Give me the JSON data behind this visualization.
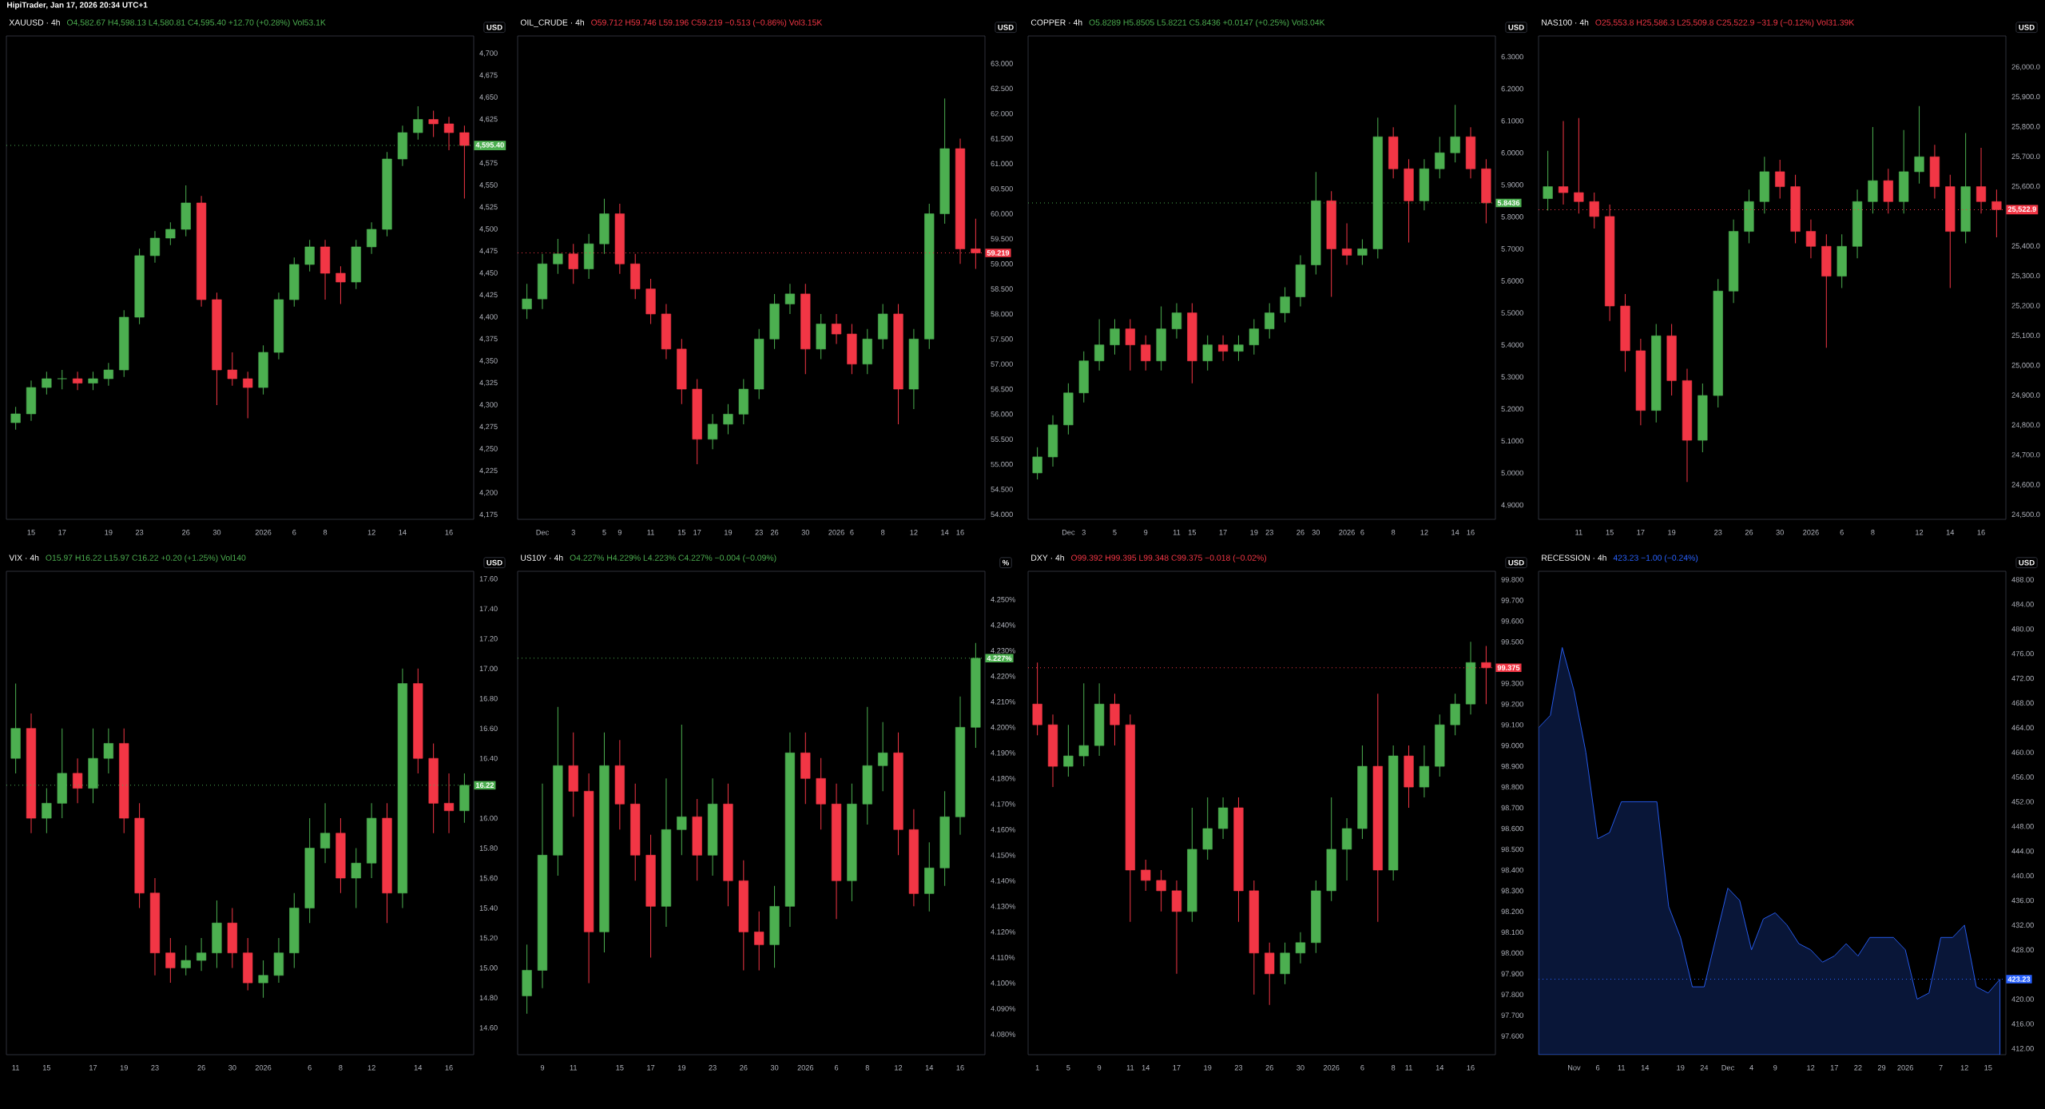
{
  "chart_data": [
    {
      "type": "candlestick",
      "title": "XAUUSD · 4h",
      "subtitle": "O4,582.67 H4,598.13 L4,580.81 C4,595.40 +12.70 (+0.28%) Vol53.1K",
      "ylabel": "USD",
      "annotations": [
        "HipiTrader, Jan 17, 2026 20:34 UTC+1"
      ],
      "categories": [
        null,
        "15",
        null,
        "17",
        null,
        null,
        "19",
        null,
        "23",
        null,
        null,
        "26",
        null,
        "30",
        null,
        null,
        "2026",
        null,
        "6",
        null,
        "8",
        null,
        null,
        "12",
        null,
        "14",
        null,
        null,
        "16",
        null
      ],
      "ohlc": [
        [
          4280,
          4298,
          4272,
          4290
        ],
        [
          4290,
          4328,
          4282,
          4320
        ],
        [
          4320,
          4338,
          4312,
          4330
        ],
        [
          4330,
          4340,
          4318,
          4330
        ],
        [
          4330,
          4338,
          4317,
          4325
        ],
        [
          4325,
          4338,
          4317,
          4330
        ],
        [
          4330,
          4348,
          4322,
          4340
        ],
        [
          4340,
          4408,
          4332,
          4400
        ],
        [
          4400,
          4478,
          4392,
          4470
        ],
        [
          4470,
          4498,
          4462,
          4490
        ],
        [
          4490,
          4508,
          4482,
          4500
        ],
        [
          4500,
          4550,
          4492,
          4530
        ],
        [
          4530,
          4538,
          4412,
          4420
        ],
        [
          4420,
          4428,
          4300,
          4340
        ],
        [
          4340,
          4360,
          4322,
          4330
        ],
        [
          4330,
          4338,
          4285,
          4320
        ],
        [
          4320,
          4368,
          4312,
          4360
        ],
        [
          4360,
          4428,
          4352,
          4420
        ],
        [
          4420,
          4468,
          4412,
          4460
        ],
        [
          4460,
          4488,
          4452,
          4480
        ],
        [
          4480,
          4488,
          4420,
          4450
        ],
        [
          4450,
          4458,
          4415,
          4440
        ],
        [
          4440,
          4488,
          4432,
          4480
        ],
        [
          4480,
          4508,
          4472,
          4500
        ],
        [
          4500,
          4588,
          4492,
          4580
        ],
        [
          4580,
          4618,
          4572,
          4610
        ],
        [
          4610,
          4640,
          4602,
          4625
        ],
        [
          4625,
          4635,
          4605,
          4620
        ],
        [
          4620,
          4628,
          4590,
          4610
        ],
        [
          4610,
          4618,
          4535,
          4595.4
        ]
      ],
      "ylim": [
        4170,
        4720
      ],
      "yticks": [
        {
          "value": 4175,
          "label": "4,175"
        },
        {
          "value": 4200,
          "label": "4,200"
        },
        {
          "value": 4225,
          "label": "4,225"
        },
        {
          "value": 4250,
          "label": "4,250"
        },
        {
          "value": 4275,
          "label": "4,275"
        },
        {
          "value": 4300,
          "label": "4,300"
        },
        {
          "value": 4325,
          "label": "4,325"
        },
        {
          "value": 4350,
          "label": "4,350"
        },
        {
          "value": 4375,
          "label": "4,375"
        },
        {
          "value": 4400,
          "label": "4,400"
        },
        {
          "value": 4425,
          "label": "4,425"
        },
        {
          "value": 4450,
          "label": "4,450"
        },
        {
          "value": 4475,
          "label": "4,475"
        },
        {
          "value": 4500,
          "label": "4,500"
        },
        {
          "value": 4525,
          "label": "4,525"
        },
        {
          "value": 4550,
          "label": "4,550"
        },
        {
          "value": 4575,
          "label": "4,575"
        },
        {
          "value": 4625,
          "label": "4,625"
        },
        {
          "value": 4650,
          "label": "4,650"
        },
        {
          "value": 4675,
          "label": "4,675"
        },
        {
          "value": 4700,
          "label": "4,700"
        }
      ],
      "ref_lines": [
        {
          "axis": "y",
          "value": 4595.4,
          "label": "4,595.40",
          "color": "#4caf50",
          "line_style": "dotted"
        }
      ]
    },
    {
      "type": "candlestick",
      "title": "OIL_CRUDE · 4h",
      "subtitle": "O59.712 H59.746 L59.196 C59.219 −0.513 (−0.86%) Vol3.15K",
      "ylabel": "USD",
      "categories": [
        null,
        "Dec",
        null,
        "3",
        null,
        "5",
        "9",
        null,
        "11",
        null,
        "15",
        "17",
        null,
        "19",
        null,
        "23",
        "26",
        null,
        "30",
        null,
        "2026",
        "6",
        null,
        "8",
        null,
        "12",
        null,
        "14",
        "16",
        null
      ],
      "ohlc": [
        [
          58.1,
          58.6,
          57.9,
          58.3
        ],
        [
          58.3,
          59.2,
          58.1,
          59.0
        ],
        [
          59.0,
          59.5,
          58.8,
          59.2
        ],
        [
          59.2,
          59.4,
          58.6,
          58.9
        ],
        [
          58.9,
          59.6,
          58.7,
          59.4
        ],
        [
          59.4,
          60.3,
          59.2,
          60.0
        ],
        [
          60.0,
          60.2,
          58.8,
          59.0
        ],
        [
          59.0,
          59.2,
          58.3,
          58.5
        ],
        [
          58.5,
          58.7,
          57.8,
          58.0
        ],
        [
          58.0,
          58.2,
          57.1,
          57.3
        ],
        [
          57.3,
          57.5,
          56.2,
          56.5
        ],
        [
          56.5,
          56.7,
          55.0,
          55.5
        ],
        [
          55.5,
          56.0,
          55.3,
          55.8
        ],
        [
          55.8,
          56.2,
          55.6,
          56.0
        ],
        [
          56.0,
          56.7,
          55.8,
          56.5
        ],
        [
          56.5,
          57.7,
          56.3,
          57.5
        ],
        [
          57.5,
          58.4,
          57.3,
          58.2
        ],
        [
          58.2,
          58.6,
          58.0,
          58.4
        ],
        [
          58.4,
          58.6,
          56.8,
          57.3
        ],
        [
          57.3,
          58.0,
          57.1,
          57.8
        ],
        [
          57.8,
          58.0,
          57.4,
          57.6
        ],
        [
          57.6,
          57.8,
          56.8,
          57.0
        ],
        [
          57.0,
          57.7,
          56.8,
          57.5
        ],
        [
          57.5,
          58.2,
          57.3,
          58.0
        ],
        [
          58.0,
          58.2,
          55.8,
          56.5
        ],
        [
          56.5,
          57.7,
          56.1,
          57.5
        ],
        [
          57.5,
          60.2,
          57.3,
          60.0
        ],
        [
          60.0,
          62.3,
          59.8,
          61.3
        ],
        [
          61.3,
          61.5,
          59.0,
          59.3
        ],
        [
          59.3,
          59.9,
          58.9,
          59.219
        ]
      ],
      "ylim": [
        53.9,
        63.55
      ],
      "yticks": [
        {
          "value": 54,
          "label": "54.000"
        },
        {
          "value": 54.5,
          "label": "54.500"
        },
        {
          "value": 55,
          "label": "55.000"
        },
        {
          "value": 55.5,
          "label": "55.500"
        },
        {
          "value": 56,
          "label": "56.000"
        },
        {
          "value": 56.5,
          "label": "56.500"
        },
        {
          "value": 57,
          "label": "57.000"
        },
        {
          "value": 57.5,
          "label": "57.500"
        },
        {
          "value": 58,
          "label": "58.000"
        },
        {
          "value": 58.5,
          "label": "58.500"
        },
        {
          "value": 59,
          "label": "59.000"
        },
        {
          "value": 59.5,
          "label": "59.500"
        },
        {
          "value": 60,
          "label": "60.000"
        },
        {
          "value": 60.5,
          "label": "60.500"
        },
        {
          "value": 61,
          "label": "61.000"
        },
        {
          "value": 61.5,
          "label": "61.500"
        },
        {
          "value": 62,
          "label": "62.000"
        },
        {
          "value": 62.5,
          "label": "62.500"
        },
        {
          "value": 63,
          "label": "63.000"
        }
      ],
      "ref_lines": [
        {
          "axis": "y",
          "value": 59.219,
          "label": "59.219",
          "color": "#f23645",
          "line_style": "dotted"
        }
      ]
    },
    {
      "type": "candlestick",
      "title": "COPPER · 4h",
      "subtitle": "O5.8289 H5.8505 L5.8221 C5.8436 +0.0147 (+0.25%) Vol3.04K",
      "ylabel": "USD",
      "categories": [
        null,
        null,
        "Dec",
        "3",
        null,
        "5",
        null,
        "9",
        null,
        "11",
        "15",
        null,
        "17",
        null,
        "19",
        "23",
        null,
        "26",
        "30",
        null,
        "2026",
        "6",
        null,
        "8",
        null,
        "12",
        null,
        "14",
        "16",
        null
      ],
      "ohlc": [
        [
          5.0,
          5.08,
          4.98,
          5.05
        ],
        [
          5.05,
          5.18,
          5.02,
          5.15
        ],
        [
          5.15,
          5.28,
          5.12,
          5.25
        ],
        [
          5.25,
          5.38,
          5.22,
          5.35
        ],
        [
          5.35,
          5.48,
          5.32,
          5.4
        ],
        [
          5.4,
          5.48,
          5.37,
          5.45
        ],
        [
          5.45,
          5.48,
          5.32,
          5.4
        ],
        [
          5.4,
          5.43,
          5.32,
          5.35
        ],
        [
          5.35,
          5.52,
          5.32,
          5.45
        ],
        [
          5.45,
          5.53,
          5.42,
          5.5
        ],
        [
          5.5,
          5.53,
          5.28,
          5.35
        ],
        [
          5.35,
          5.43,
          5.32,
          5.4
        ],
        [
          5.4,
          5.43,
          5.35,
          5.38
        ],
        [
          5.38,
          5.43,
          5.35,
          5.4
        ],
        [
          5.4,
          5.48,
          5.37,
          5.45
        ],
        [
          5.45,
          5.53,
          5.42,
          5.5
        ],
        [
          5.5,
          5.58,
          5.47,
          5.55
        ],
        [
          5.55,
          5.68,
          5.52,
          5.65
        ],
        [
          5.65,
          5.94,
          5.62,
          5.85
        ],
        [
          5.85,
          5.88,
          5.55,
          5.7
        ],
        [
          5.7,
          5.78,
          5.65,
          5.68
        ],
        [
          5.68,
          5.73,
          5.65,
          5.7
        ],
        [
          5.7,
          6.11,
          5.67,
          6.05
        ],
        [
          6.05,
          6.08,
          5.92,
          5.95
        ],
        [
          5.95,
          5.98,
          5.72,
          5.85
        ],
        [
          5.85,
          5.98,
          5.82,
          5.95
        ],
        [
          5.95,
          6.05,
          5.92,
          6.0
        ],
        [
          6.0,
          6.15,
          5.97,
          6.05
        ],
        [
          6.05,
          6.08,
          5.92,
          5.95
        ],
        [
          5.95,
          5.98,
          5.78,
          5.8436
        ]
      ],
      "ylim": [
        4.855,
        6.365
      ],
      "yticks": [
        {
          "value": 4.9,
          "label": "4.9000"
        },
        {
          "value": 5.0,
          "label": "5.0000"
        },
        {
          "value": 5.1,
          "label": "5.1000"
        },
        {
          "value": 5.2,
          "label": "5.2000"
        },
        {
          "value": 5.3,
          "label": "5.3000"
        },
        {
          "value": 5.4,
          "label": "5.4000"
        },
        {
          "value": 5.5,
          "label": "5.5000"
        },
        {
          "value": 5.6,
          "label": "5.6000"
        },
        {
          "value": 5.7,
          "label": "5.7000"
        },
        {
          "value": 5.8,
          "label": "5.8000"
        },
        {
          "value": 5.9,
          "label": "5.9000"
        },
        {
          "value": 6.0,
          "label": "6.0000"
        },
        {
          "value": 6.1,
          "label": "6.1000"
        },
        {
          "value": 6.2,
          "label": "6.2000"
        },
        {
          "value": 6.3,
          "label": "6.3000"
        }
      ],
      "ref_lines": [
        {
          "axis": "y",
          "value": 5.8436,
          "label": "5.8436",
          "color": "#4caf50",
          "line_style": "dotted"
        }
      ]
    },
    {
      "type": "candlestick",
      "title": "NAS100 · 4h",
      "subtitle": "O25,553.8 H25,586.3 L25,509.8 C25,522.9 −31.9 (−0.12%) Vol31.39K",
      "ylabel": "USD",
      "categories": [
        null,
        null,
        "11",
        null,
        "15",
        null,
        "17",
        null,
        "19",
        null,
        null,
        "23",
        null,
        "26",
        null,
        "30",
        null,
        "2026",
        null,
        "6",
        null,
        "8",
        null,
        null,
        "12",
        null,
        "14",
        null,
        "16",
        null
      ],
      "ohlc": [
        [
          25560,
          25720,
          25520,
          25600
        ],
        [
          25600,
          25820,
          25540,
          25580
        ],
        [
          25580,
          25830,
          25510,
          25550
        ],
        [
          25550,
          25580,
          25460,
          25500
        ],
        [
          25500,
          25540,
          25150,
          25200
        ],
        [
          25200,
          25240,
          24980,
          25050
        ],
        [
          25050,
          25090,
          24800,
          24850
        ],
        [
          24850,
          25140,
          24810,
          25100
        ],
        [
          25100,
          25140,
          24900,
          24950
        ],
        [
          24950,
          24990,
          24610,
          24750
        ],
        [
          24750,
          24940,
          24710,
          24900
        ],
        [
          24900,
          25290,
          24860,
          25250
        ],
        [
          25250,
          25490,
          25210,
          25450
        ],
        [
          25450,
          25590,
          25410,
          25550
        ],
        [
          25550,
          25700,
          25510,
          25650
        ],
        [
          25650,
          25690,
          25560,
          25600
        ],
        [
          25600,
          25640,
          25410,
          25450
        ],
        [
          25450,
          25490,
          25360,
          25400
        ],
        [
          25400,
          25440,
          25060,
          25300
        ],
        [
          25300,
          25440,
          25260,
          25400
        ],
        [
          25400,
          25590,
          25360,
          25550
        ],
        [
          25550,
          25800,
          25510,
          25620
        ],
        [
          25620,
          25660,
          25510,
          25550
        ],
        [
          25550,
          25790,
          25510,
          25650
        ],
        [
          25650,
          25870,
          25610,
          25700
        ],
        [
          25700,
          25740,
          25560,
          25600
        ],
        [
          25600,
          25640,
          25260,
          25450
        ],
        [
          25450,
          25780,
          25410,
          25600
        ],
        [
          25600,
          25730,
          25510,
          25550
        ],
        [
          25550,
          25590,
          25430,
          25522.9
        ]
      ],
      "ylim": [
        24485,
        26105
      ],
      "yticks": [
        {
          "value": 24500,
          "label": "24,500.0"
        },
        {
          "value": 24600,
          "label": "24,600.0"
        },
        {
          "value": 24700,
          "label": "24,700.0"
        },
        {
          "value": 24800,
          "label": "24,800.0"
        },
        {
          "value": 24900,
          "label": "24,900.0"
        },
        {
          "value": 25000,
          "label": "25,000.0"
        },
        {
          "value": 25100,
          "label": "25,100.0"
        },
        {
          "value": 25200,
          "label": "25,200.0"
        },
        {
          "value": 25300,
          "label": "25,300.0"
        },
        {
          "value": 25400,
          "label": "25,400.0"
        },
        {
          "value": 25600,
          "label": "25,600.0"
        },
        {
          "value": 25700,
          "label": "25,700.0"
        },
        {
          "value": 25800,
          "label": "25,800.0"
        },
        {
          "value": 25900,
          "label": "25,900.0"
        },
        {
          "value": 26000,
          "label": "26,000.0"
        }
      ],
      "ref_lines": [
        {
          "axis": "y",
          "value": 25522.9,
          "label": "25,522.9",
          "color": "#f23645",
          "line_style": "dotted"
        }
      ]
    },
    {
      "type": "candlestick",
      "title": "VIX · 4h",
      "subtitle": "O15.97 H16.22 L15.97 C16.22 +0.20 (+1.25%) Vol140",
      "ylabel": "USD",
      "categories": [
        "11",
        null,
        "15",
        null,
        null,
        "17",
        null,
        "19",
        null,
        "23",
        null,
        null,
        "26",
        null,
        "30",
        null,
        "2026",
        null,
        null,
        "6",
        null,
        "8",
        null,
        "12",
        null,
        null,
        "14",
        null,
        "16",
        null
      ],
      "ohlc": [
        [
          16.4,
          16.9,
          16.3,
          16.6
        ],
        [
          16.6,
          16.7,
          15.9,
          16.0
        ],
        [
          16.0,
          16.2,
          15.9,
          16.1
        ],
        [
          16.1,
          16.6,
          16.0,
          16.3
        ],
        [
          16.3,
          16.4,
          16.1,
          16.2
        ],
        [
          16.2,
          16.6,
          16.1,
          16.4
        ],
        [
          16.4,
          16.6,
          16.3,
          16.5
        ],
        [
          16.5,
          16.6,
          15.9,
          16.0
        ],
        [
          16.0,
          16.1,
          15.4,
          15.5
        ],
        [
          15.5,
          15.6,
          14.95,
          15.1
        ],
        [
          15.1,
          15.2,
          14.9,
          15.0
        ],
        [
          15.0,
          15.15,
          14.95,
          15.05
        ],
        [
          15.05,
          15.2,
          14.98,
          15.1
        ],
        [
          15.1,
          15.45,
          15.0,
          15.3
        ],
        [
          15.3,
          15.4,
          15.0,
          15.1
        ],
        [
          15.1,
          15.2,
          14.85,
          14.9
        ],
        [
          14.9,
          15.05,
          14.8,
          14.95
        ],
        [
          14.95,
          15.2,
          14.9,
          15.1
        ],
        [
          15.1,
          15.5,
          15.0,
          15.4
        ],
        [
          15.4,
          16.0,
          15.3,
          15.8
        ],
        [
          15.8,
          16.1,
          15.7,
          15.9
        ],
        [
          15.9,
          16.0,
          15.5,
          15.6
        ],
        [
          15.6,
          15.8,
          15.4,
          15.7
        ],
        [
          15.7,
          16.1,
          15.6,
          16.0
        ],
        [
          16.0,
          16.1,
          15.3,
          15.5
        ],
        [
          15.5,
          17.0,
          15.4,
          16.9
        ],
        [
          16.9,
          17.0,
          16.3,
          16.4
        ],
        [
          16.4,
          16.5,
          15.9,
          16.1
        ],
        [
          16.1,
          16.3,
          15.9,
          16.05
        ],
        [
          16.05,
          16.3,
          15.97,
          16.22
        ]
      ],
      "ylim": [
        14.42,
        17.65
      ],
      "yticks": [
        {
          "value": 14.6,
          "label": "14.60"
        },
        {
          "value": 14.8,
          "label": "14.80"
        },
        {
          "value": 15.0,
          "label": "15.00"
        },
        {
          "value": 15.2,
          "label": "15.20"
        },
        {
          "value": 15.4,
          "label": "15.40"
        },
        {
          "value": 15.6,
          "label": "15.60"
        },
        {
          "value": 15.8,
          "label": "15.80"
        },
        {
          "value": 16.0,
          "label": "16.00"
        },
        {
          "value": 16.4,
          "label": "16.40"
        },
        {
          "value": 16.6,
          "label": "16.60"
        },
        {
          "value": 16.8,
          "label": "16.80"
        },
        {
          "value": 17.0,
          "label": "17.00"
        },
        {
          "value": 17.2,
          "label": "17.20"
        },
        {
          "value": 17.4,
          "label": "17.40"
        },
        {
          "value": 17.6,
          "label": "17.60"
        }
      ],
      "ref_lines": [
        {
          "axis": "y",
          "value": 16.22,
          "label": "16.22",
          "color": "#4caf50",
          "line_style": "dotted"
        }
      ]
    },
    {
      "type": "candlestick",
      "title": "US10Y · 4h",
      "subtitle": "O4.227% H4.229% L4.223% C4.227% −0.004 (−0.09%)",
      "ylabel": "%",
      "categories": [
        null,
        "9",
        null,
        "11",
        null,
        null,
        "15",
        null,
        "17",
        null,
        "19",
        null,
        "23",
        null,
        "26",
        null,
        "30",
        null,
        "2026",
        null,
        "6",
        null,
        "8",
        null,
        "12",
        null,
        "14",
        null,
        "16",
        null
      ],
      "ohlc": [
        [
          4.095,
          4.115,
          4.088,
          4.105
        ],
        [
          4.105,
          4.178,
          4.098,
          4.15
        ],
        [
          4.15,
          4.208,
          4.142,
          4.185
        ],
        [
          4.185,
          4.198,
          4.165,
          4.175
        ],
        [
          4.175,
          4.182,
          4.1,
          4.12
        ],
        [
          4.12,
          4.198,
          4.112,
          4.185
        ],
        [
          4.185,
          4.195,
          4.16,
          4.17
        ],
        [
          4.17,
          4.178,
          4.14,
          4.15
        ],
        [
          4.15,
          4.158,
          4.11,
          4.13
        ],
        [
          4.13,
          4.18,
          4.122,
          4.16
        ],
        [
          4.16,
          4.201,
          4.15,
          4.165
        ],
        [
          4.165,
          4.172,
          4.14,
          4.15
        ],
        [
          4.15,
          4.18,
          4.142,
          4.17
        ],
        [
          4.17,
          4.178,
          4.13,
          4.14
        ],
        [
          4.14,
          4.148,
          4.105,
          4.12
        ],
        [
          4.12,
          4.128,
          4.105,
          4.115
        ],
        [
          4.115,
          4.138,
          4.106,
          4.13
        ],
        [
          4.13,
          4.198,
          4.122,
          4.19
        ],
        [
          4.19,
          4.198,
          4.17,
          4.18
        ],
        [
          4.18,
          4.188,
          4.16,
          4.17
        ],
        [
          4.17,
          4.178,
          4.125,
          4.14
        ],
        [
          4.14,
          4.178,
          4.132,
          4.17
        ],
        [
          4.17,
          4.208,
          4.162,
          4.185
        ],
        [
          4.185,
          4.202,
          4.175,
          4.19
        ],
        [
          4.19,
          4.198,
          4.15,
          4.16
        ],
        [
          4.16,
          4.168,
          4.13,
          4.135
        ],
        [
          4.135,
          4.155,
          4.128,
          4.145
        ],
        [
          4.145,
          4.175,
          4.138,
          4.165
        ],
        [
          4.165,
          4.212,
          4.158,
          4.2
        ],
        [
          4.2,
          4.233,
          4.192,
          4.227
        ]
      ],
      "ylim": [
        4.072,
        4.261
      ],
      "yticks": [
        {
          "value": 4.08,
          "label": "4.080%"
        },
        {
          "value": 4.09,
          "label": "4.090%"
        },
        {
          "value": 4.1,
          "label": "4.100%"
        },
        {
          "value": 4.11,
          "label": "4.110%"
        },
        {
          "value": 4.12,
          "label": "4.120%"
        },
        {
          "value": 4.13,
          "label": "4.130%"
        },
        {
          "value": 4.14,
          "label": "4.140%"
        },
        {
          "value": 4.15,
          "label": "4.150%"
        },
        {
          "value": 4.16,
          "label": "4.160%"
        },
        {
          "value": 4.17,
          "label": "4.170%"
        },
        {
          "value": 4.18,
          "label": "4.180%"
        },
        {
          "value": 4.19,
          "label": "4.190%"
        },
        {
          "value": 4.2,
          "label": "4.200%"
        },
        {
          "value": 4.21,
          "label": "4.210%"
        },
        {
          "value": 4.22,
          "label": "4.220%"
        },
        {
          "value": 4.23,
          "label": "4.230%"
        },
        {
          "value": 4.24,
          "label": "4.240%"
        },
        {
          "value": 4.25,
          "label": "4.250%"
        }
      ],
      "ref_lines": [
        {
          "axis": "y",
          "value": 4.227,
          "label": "4.227%",
          "color": "#4caf50",
          "line_style": "dotted"
        }
      ]
    },
    {
      "type": "candlestick",
      "title": "DXY · 4h",
      "subtitle": "O99.392 H99.395 L99.348 C99.375 −0.018 (−0.02%)",
      "ylabel": "USD",
      "categories": [
        "1",
        null,
        "5",
        null,
        "9",
        null,
        "11",
        "14",
        null,
        "17",
        null,
        "19",
        null,
        "23",
        null,
        "26",
        null,
        "30",
        null,
        "2026",
        null,
        "6",
        null,
        "8",
        "11",
        null,
        "14",
        null,
        "16",
        null
      ],
      "ohlc": [
        [
          99.2,
          99.4,
          99.05,
          99.1
        ],
        [
          99.1,
          99.15,
          98.8,
          98.9
        ],
        [
          98.9,
          99.1,
          98.85,
          98.95
        ],
        [
          98.95,
          99.3,
          98.9,
          99.0
        ],
        [
          99.0,
          99.3,
          98.95,
          99.2
        ],
        [
          99.2,
          99.25,
          99.0,
          99.1
        ],
        [
          99.1,
          99.15,
          98.15,
          98.4
        ],
        [
          98.4,
          98.45,
          98.3,
          98.35
        ],
        [
          98.35,
          98.4,
          98.2,
          98.3
        ],
        [
          98.3,
          98.35,
          97.9,
          98.2
        ],
        [
          98.2,
          98.7,
          98.15,
          98.5
        ],
        [
          98.5,
          98.75,
          98.45,
          98.6
        ],
        [
          98.6,
          98.75,
          98.55,
          98.7
        ],
        [
          98.7,
          98.75,
          98.15,
          98.3
        ],
        [
          98.3,
          98.35,
          97.8,
          98.0
        ],
        [
          98.0,
          98.05,
          97.75,
          97.9
        ],
        [
          97.9,
          98.05,
          97.85,
          98.0
        ],
        [
          98.0,
          98.1,
          97.95,
          98.05
        ],
        [
          98.05,
          98.35,
          98.0,
          98.3
        ],
        [
          98.3,
          98.75,
          98.25,
          98.5
        ],
        [
          98.5,
          98.65,
          98.35,
          98.6
        ],
        [
          98.6,
          99.0,
          98.55,
          98.9
        ],
        [
          98.9,
          99.25,
          98.15,
          98.4
        ],
        [
          98.4,
          99.0,
          98.35,
          98.95
        ],
        [
          98.95,
          99.0,
          98.7,
          98.8
        ],
        [
          98.8,
          99.0,
          98.75,
          98.9
        ],
        [
          98.9,
          99.15,
          98.85,
          99.1
        ],
        [
          99.1,
          99.25,
          99.05,
          99.2
        ],
        [
          99.2,
          99.5,
          99.15,
          99.4
        ],
        [
          99.4,
          99.48,
          99.2,
          99.375
        ]
      ],
      "ylim": [
        97.51,
        99.84
      ],
      "yticks": [
        {
          "value": 97.6,
          "label": "97.600"
        },
        {
          "value": 97.7,
          "label": "97.700"
        },
        {
          "value": 97.8,
          "label": "97.800"
        },
        {
          "value": 97.9,
          "label": "97.900"
        },
        {
          "value": 98.0,
          "label": "98.000"
        },
        {
          "value": 98.1,
          "label": "98.100"
        },
        {
          "value": 98.2,
          "label": "98.200"
        },
        {
          "value": 98.3,
          "label": "98.300"
        },
        {
          "value": 98.4,
          "label": "98.400"
        },
        {
          "value": 98.5,
          "label": "98.500"
        },
        {
          "value": 98.6,
          "label": "98.600"
        },
        {
          "value": 98.7,
          "label": "98.700"
        },
        {
          "value": 98.8,
          "label": "98.800"
        },
        {
          "value": 98.9,
          "label": "98.900"
        },
        {
          "value": 99.0,
          "label": "99.000"
        },
        {
          "value": 99.1,
          "label": "99.100"
        },
        {
          "value": 99.2,
          "label": "99.200"
        },
        {
          "value": 99.3,
          "label": "99.300"
        },
        {
          "value": 99.5,
          "label": "99.500"
        },
        {
          "value": 99.6,
          "label": "99.600"
        },
        {
          "value": 99.7,
          "label": "99.700"
        },
        {
          "value": 99.8,
          "label": "99.800"
        }
      ],
      "ref_lines": [
        {
          "axis": "y",
          "value": 99.375,
          "label": "99.375",
          "color": "#f23645",
          "line_style": "dotted"
        }
      ]
    },
    {
      "type": "area",
      "title": "RECESSION · 4h",
      "subtitle": "423.23 −1.00 (−0.24%)",
      "ylabel": "USD",
      "color": "#2962ff",
      "categories": [
        null,
        null,
        null,
        "Nov",
        null,
        "6",
        null,
        "11",
        null,
        "14",
        null,
        null,
        "19",
        null,
        "24",
        null,
        "Dec",
        null,
        "4",
        null,
        "9",
        null,
        null,
        "12",
        null,
        "17",
        null,
        "22",
        null,
        "29",
        null,
        "2026",
        null,
        null,
        "7",
        null,
        "12",
        null,
        "15",
        null
      ],
      "values": [
        464,
        466,
        477,
        470,
        460,
        446,
        447,
        452,
        452,
        452,
        452,
        435,
        430,
        422,
        422,
        430,
        438,
        436,
        428,
        433,
        434,
        432,
        429,
        428,
        426,
        427,
        429,
        427,
        430,
        430,
        430,
        428,
        420,
        421,
        430,
        430,
        432,
        422,
        421,
        423.23
      ],
      "ylim": [
        411,
        489.35
      ],
      "yticks": [
        {
          "value": 412,
          "label": "412.00"
        },
        {
          "value": 416,
          "label": "416.00"
        },
        {
          "value": 420,
          "label": "420.00"
        },
        {
          "value": 428,
          "label": "428.00"
        },
        {
          "value": 432,
          "label": "432.00"
        },
        {
          "value": 436,
          "label": "436.00"
        },
        {
          "value": 440,
          "label": "440.00"
        },
        {
          "value": 444,
          "label": "444.00"
        },
        {
          "value": 448,
          "label": "448.00"
        },
        {
          "value": 452,
          "label": "452.00"
        },
        {
          "value": 456,
          "label": "456.00"
        },
        {
          "value": 460,
          "label": "460.00"
        },
        {
          "value": 464,
          "label": "464.00"
        },
        {
          "value": 468,
          "label": "468.00"
        },
        {
          "value": 472,
          "label": "472.00"
        },
        {
          "value": 476,
          "label": "476.00"
        },
        {
          "value": 480,
          "label": "480.00"
        },
        {
          "value": 484,
          "label": "484.00"
        },
        {
          "value": 488,
          "label": "488.00"
        }
      ],
      "ref_lines": [
        {
          "axis": "y",
          "value": 423.23,
          "label": "423.23",
          "color": "#2962ff",
          "line_style": "dotted"
        }
      ]
    }
  ]
}
